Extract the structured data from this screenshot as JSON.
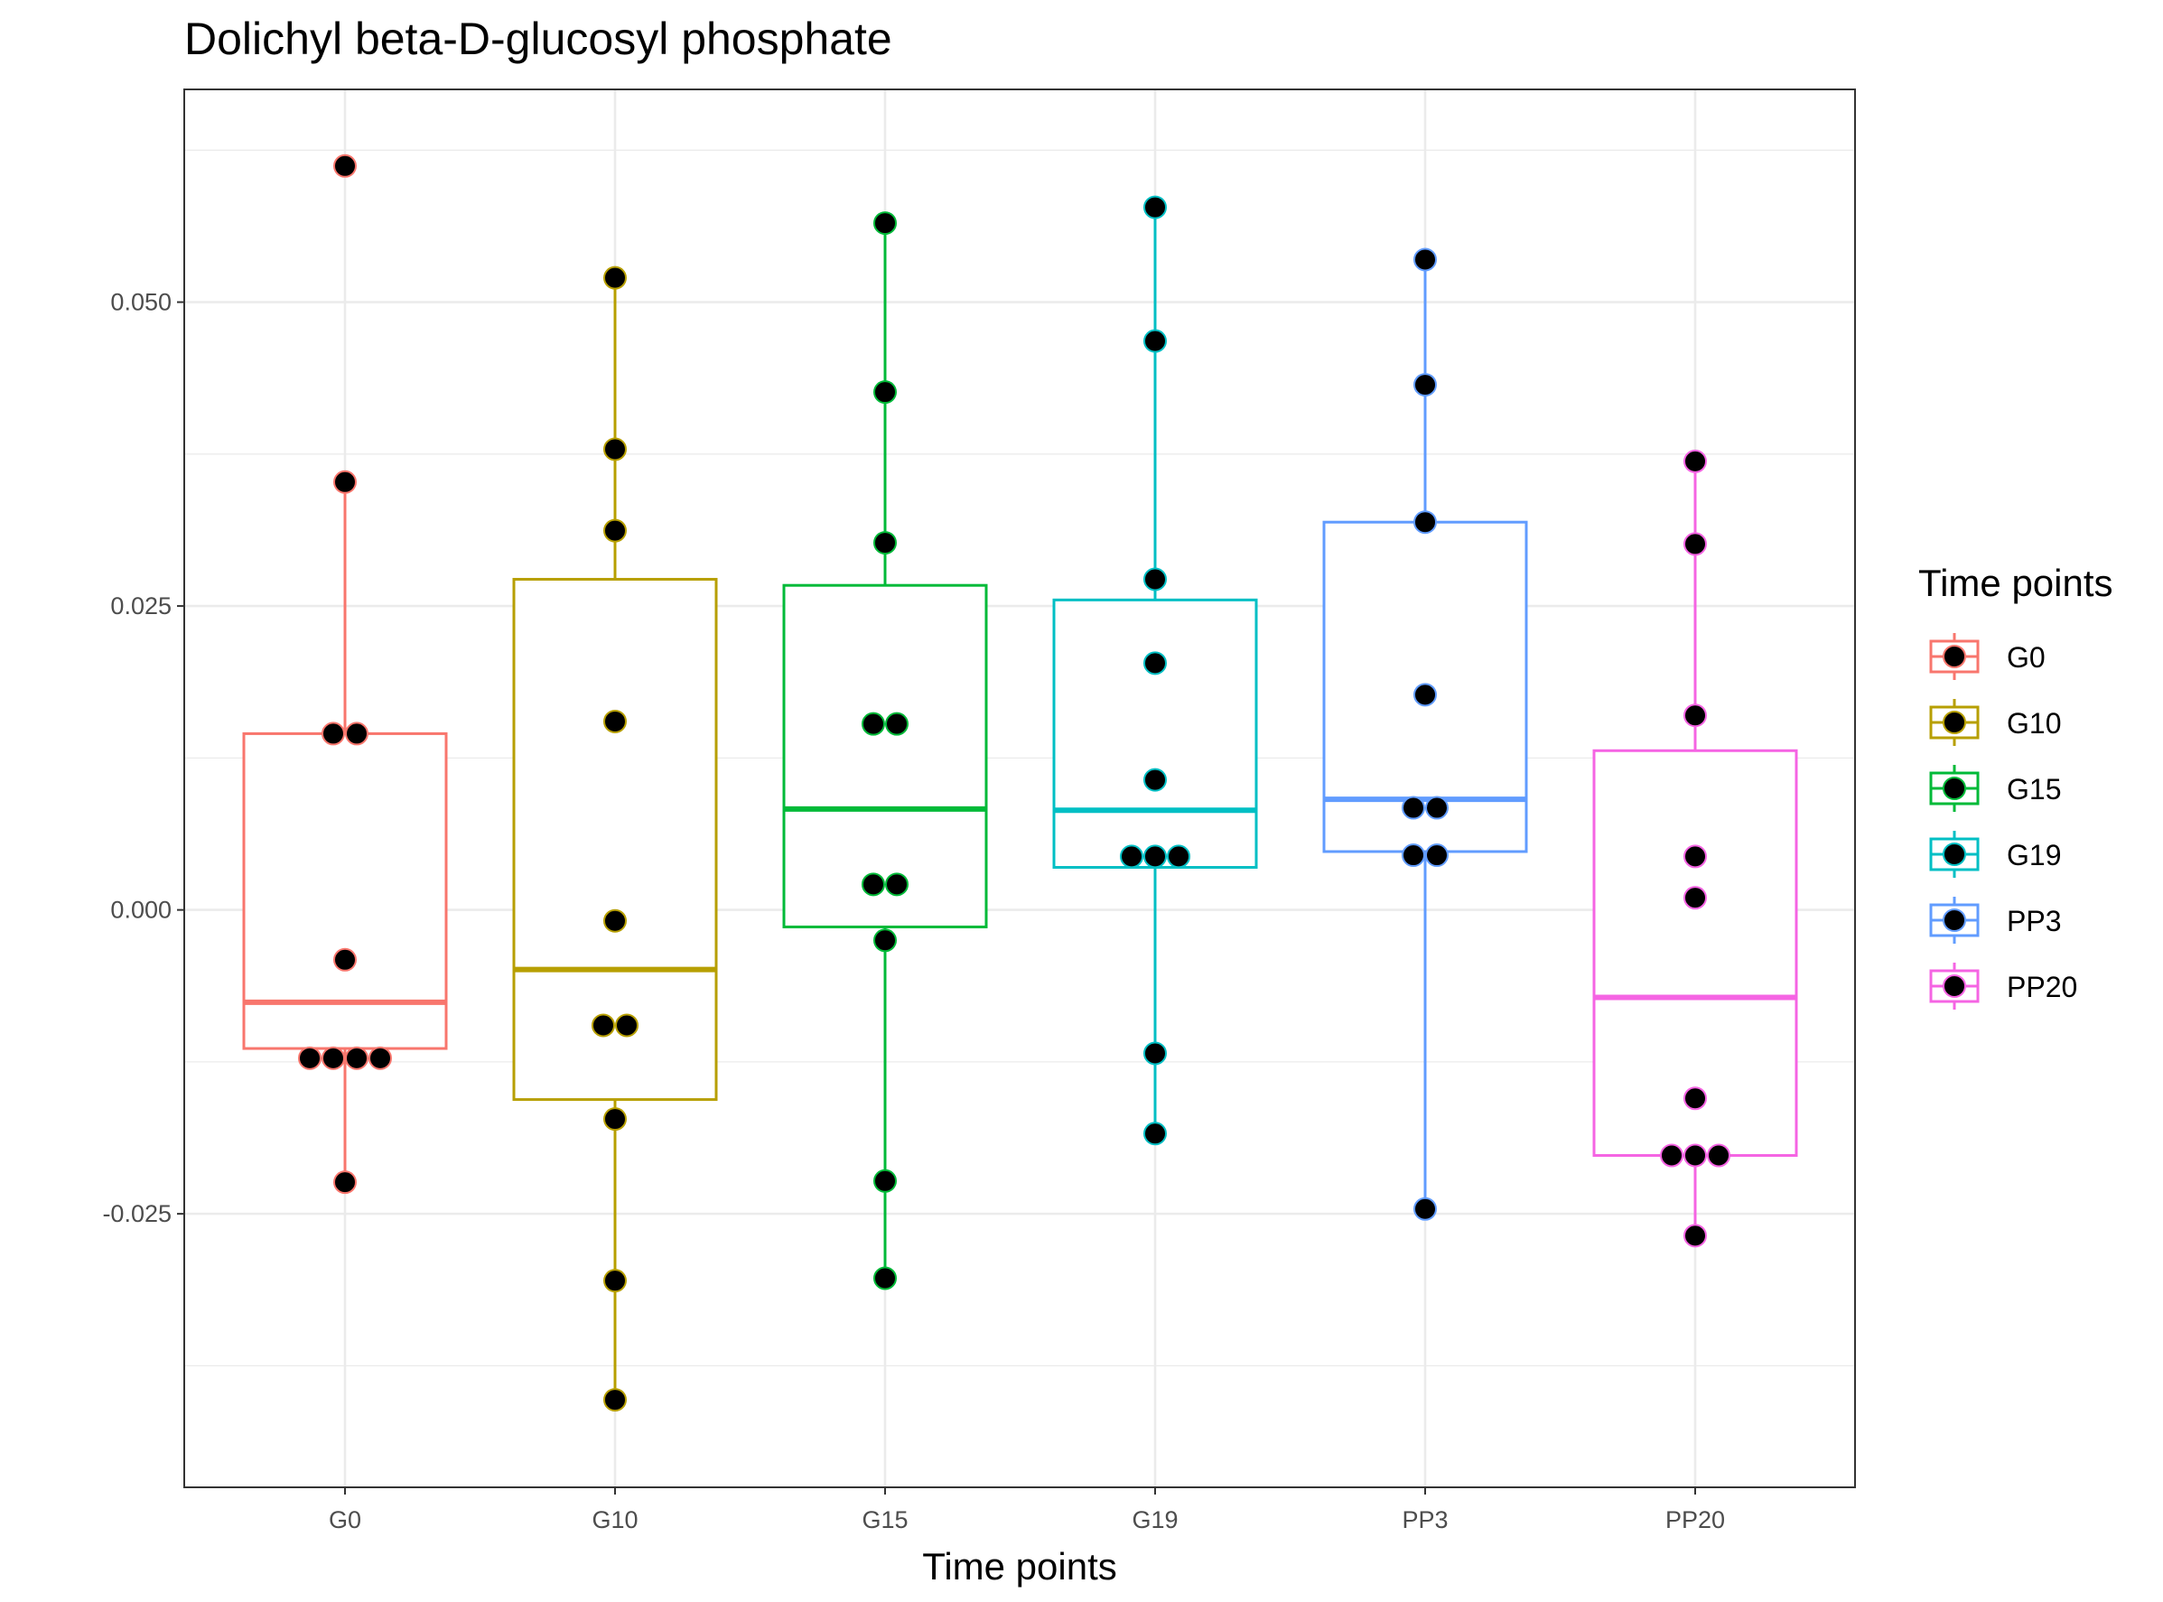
{
  "chart_data": {
    "type": "box",
    "title": "Dolichyl beta-D-glucosyl phosphate",
    "xlabel": "Time points",
    "ylabel": "",
    "ylim": [
      -0.0475,
      0.0675
    ],
    "yticks": [
      -0.025,
      0.0,
      0.025,
      0.05
    ],
    "ytick_labels": [
      "-0.025",
      "0.000",
      "0.025",
      "0.050"
    ],
    "grid": true,
    "legend": {
      "title": "Time points",
      "position": "right"
    },
    "categories": [
      "G0",
      "G10",
      "G15",
      "G19",
      "PP3",
      "PP20"
    ],
    "series": [
      {
        "name": "G0",
        "color": "#F8766D",
        "box": {
          "q1": -0.0114,
          "median": -0.0076,
          "q3": 0.0145,
          "whisker_low": -0.0224,
          "whisker_high": 0.0352
        },
        "points": [
          0.0612,
          0.0352,
          0.0145,
          0.0145,
          -0.0041,
          -0.0122,
          -0.0122,
          -0.0122,
          -0.0122,
          -0.0224
        ]
      },
      {
        "name": "G10",
        "color": "#B79F00",
        "box": {
          "q1": -0.0156,
          "median": -0.0049,
          "q3": 0.0272,
          "whisker_low": -0.0403,
          "whisker_high": 0.052
        },
        "points": [
          0.052,
          0.0379,
          0.0312,
          0.0155,
          -0.0009,
          -0.0095,
          -0.0095,
          -0.0172,
          -0.0305,
          -0.0403
        ]
      },
      {
        "name": "G15",
        "color": "#00BA38",
        "box": {
          "q1": -0.0014,
          "median": 0.0083,
          "q3": 0.0267,
          "whisker_low": -0.0303,
          "whisker_high": 0.0565
        },
        "points": [
          0.0565,
          0.0426,
          0.0302,
          0.0153,
          0.0153,
          0.0021,
          0.0021,
          -0.0025,
          -0.0223,
          -0.0303
        ]
      },
      {
        "name": "G19",
        "color": "#00BFC4",
        "box": {
          "q1": 0.0035,
          "median": 0.0082,
          "q3": 0.0255,
          "whisker_low": -0.0184,
          "whisker_high": 0.0578
        },
        "points": [
          0.0578,
          0.0468,
          0.0272,
          0.0203,
          0.0107,
          0.0044,
          0.0044,
          0.0044,
          -0.0118,
          -0.0184
        ]
      },
      {
        "name": "PP3",
        "color": "#619CFF",
        "box": {
          "q1": 0.0048,
          "median": 0.0091,
          "q3": 0.0319,
          "whisker_low": -0.0246,
          "whisker_high": 0.0535
        },
        "points": [
          0.0535,
          0.0432,
          0.0319,
          0.0177,
          0.0084,
          0.0084,
          0.0045,
          0.0045,
          -0.0246
        ]
      },
      {
        "name": "PP20",
        "color": "#F564E3",
        "box": {
          "q1": -0.0202,
          "median": -0.0072,
          "q3": 0.0131,
          "whisker_low": -0.0268,
          "whisker_high": 0.0369
        },
        "points": [
          0.0369,
          0.0301,
          0.016,
          0.0044,
          0.001,
          -0.0155,
          -0.0202,
          -0.0202,
          -0.0202,
          -0.0268
        ]
      }
    ]
  }
}
